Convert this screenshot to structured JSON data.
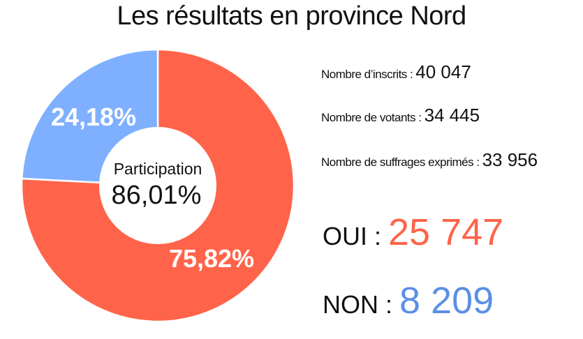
{
  "title": "Les résultats en province Nord",
  "chart_data": {
    "type": "pie",
    "donut": true,
    "title": "Les résultats en province Nord",
    "slices": [
      {
        "name": "OUI",
        "value": 75.82,
        "label": "75,82%",
        "color": "#ff644a"
      },
      {
        "name": "NON",
        "value": 24.18,
        "label": "24,18%",
        "color": "#7fb0ff"
      }
    ],
    "center_label": "Participation",
    "center_value": "86,01%"
  },
  "stats": [
    {
      "label": "Nombre d’inscrits :",
      "value": "40 047"
    },
    {
      "label": "Nombre de votants :",
      "value": "34 445"
    },
    {
      "label": "Nombre de suffrages exprimés :",
      "value": "33 956"
    }
  ],
  "results": [
    {
      "label": "OUI :",
      "value": "25 747",
      "color": "#ff644a"
    },
    {
      "label": "NON :",
      "value": "8 209",
      "color": "#5b8fe8"
    }
  ]
}
